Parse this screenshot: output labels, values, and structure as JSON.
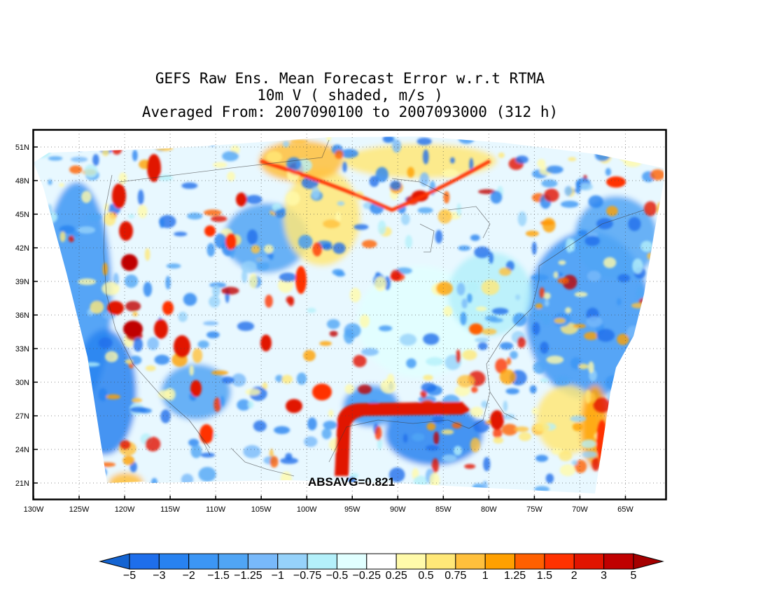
{
  "title": {
    "line1": "GEFS Raw Ens. Mean Forecast Error w.r.t RTMA",
    "line2": "10m V ( shaded, m/s )",
    "line3": "Averaged From: 2007090100 to 2007093000 (312 h)"
  },
  "map": {
    "lat_ticks": [
      "51N",
      "48N",
      "45N",
      "42N",
      "39N",
      "36N",
      "33N",
      "30N",
      "27N",
      "24N",
      "21N"
    ],
    "lon_ticks": [
      "130W",
      "125W",
      "120W",
      "115W",
      "110W",
      "105W",
      "100W",
      "95W",
      "90W",
      "85W",
      "80W",
      "75W",
      "70W",
      "65W"
    ],
    "lat_range": [
      19.5,
      52.5
    ],
    "lon_range": [
      -130,
      -60.5
    ],
    "grid": true,
    "annotation": "ABSAVG=0.821"
  },
  "colorbar": {
    "labels": [
      "-5",
      "-3",
      "-2",
      "-1.5",
      "-1.25",
      "-1",
      "-0.75",
      "-0.5",
      "-0.25",
      "0.25",
      "0.5",
      "0.75",
      "1",
      "1.25",
      "1.5",
      "2",
      "3",
      "5"
    ],
    "colors": [
      "#1e6eeb",
      "#2882f0",
      "#3c96f5",
      "#50a5f5",
      "#78b9fa",
      "#96d2fa",
      "#b4f0fa",
      "#e1ffff",
      "#ffffff",
      "#fffaaa",
      "#ffe878",
      "#ffc03c",
      "#ffa000",
      "#ff6000",
      "#ff3200",
      "#e11400",
      "#c00000",
      "#a50000"
    ],
    "under_color": "#1464d2",
    "over_color": "#a50000"
  }
}
